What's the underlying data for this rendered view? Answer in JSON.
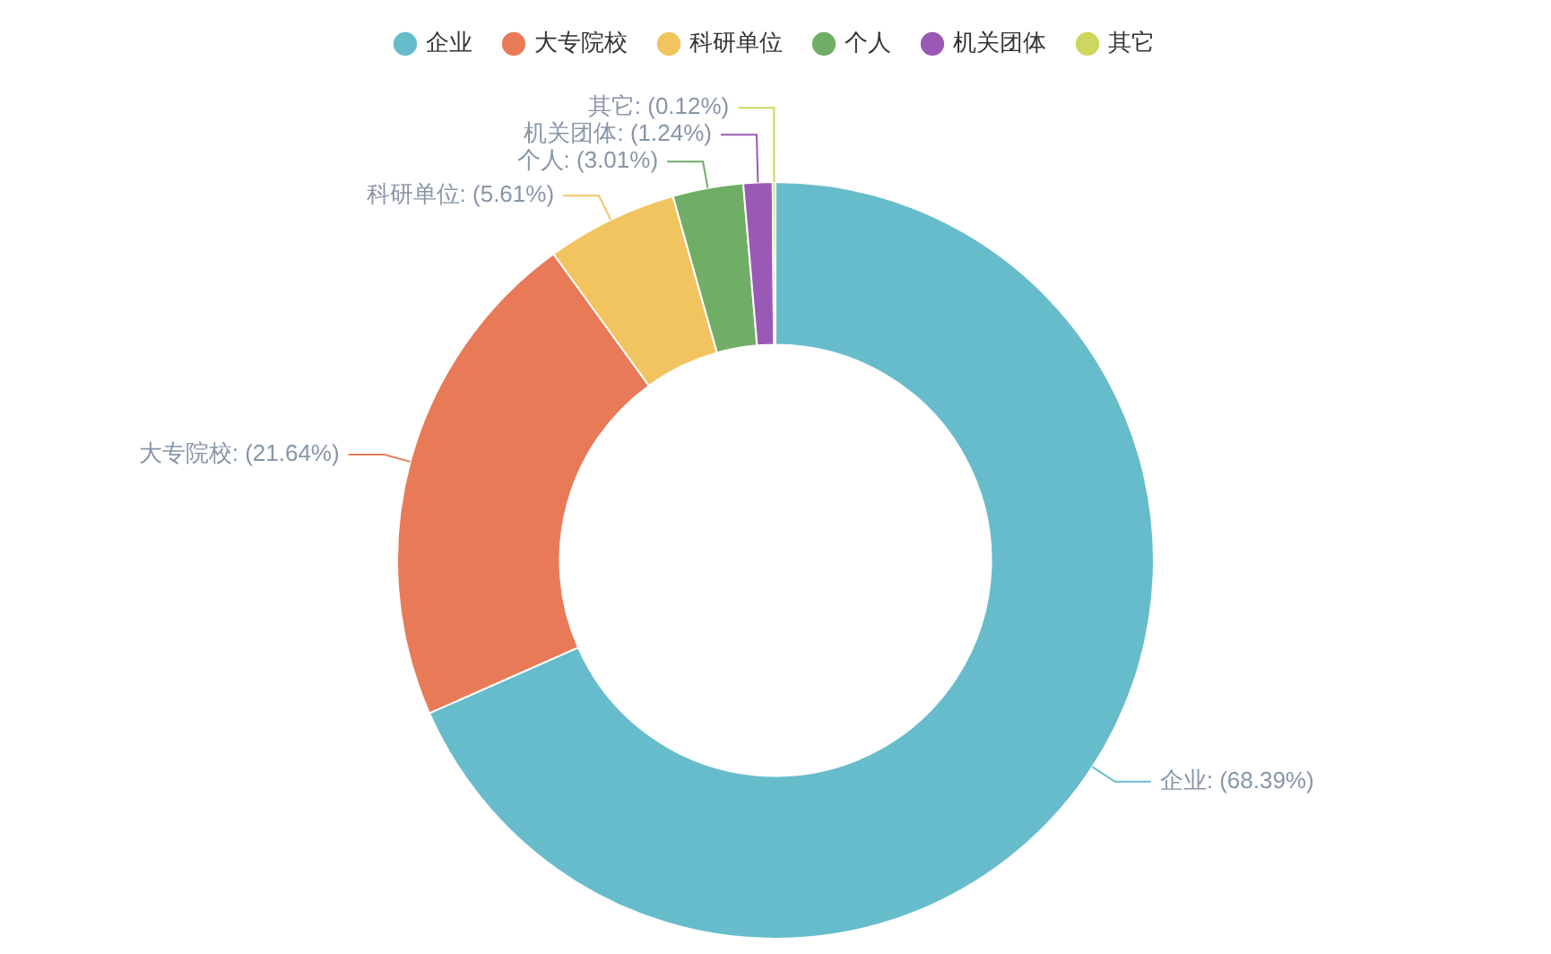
{
  "chart_data": {
    "type": "donut",
    "categories": [
      "企业",
      "大专院校",
      "科研单位",
      "个人",
      "机关团体",
      "其它"
    ],
    "values": [
      68.39,
      21.64,
      5.61,
      3.01,
      1.24,
      0.12
    ],
    "colors": [
      "#67bccb",
      "#e87a58",
      "#f2c45f",
      "#70ad66",
      "#9b59b6",
      "#cdd65f"
    ],
    "value_labels": [
      "企业: (68.39%)",
      "大专院校: (21.64%)",
      "科研单位: (5.61%)",
      "个人: (3.01%)",
      "机关团体: (1.24%)",
      "其它: (0.12%)"
    ],
    "legend": "top"
  }
}
